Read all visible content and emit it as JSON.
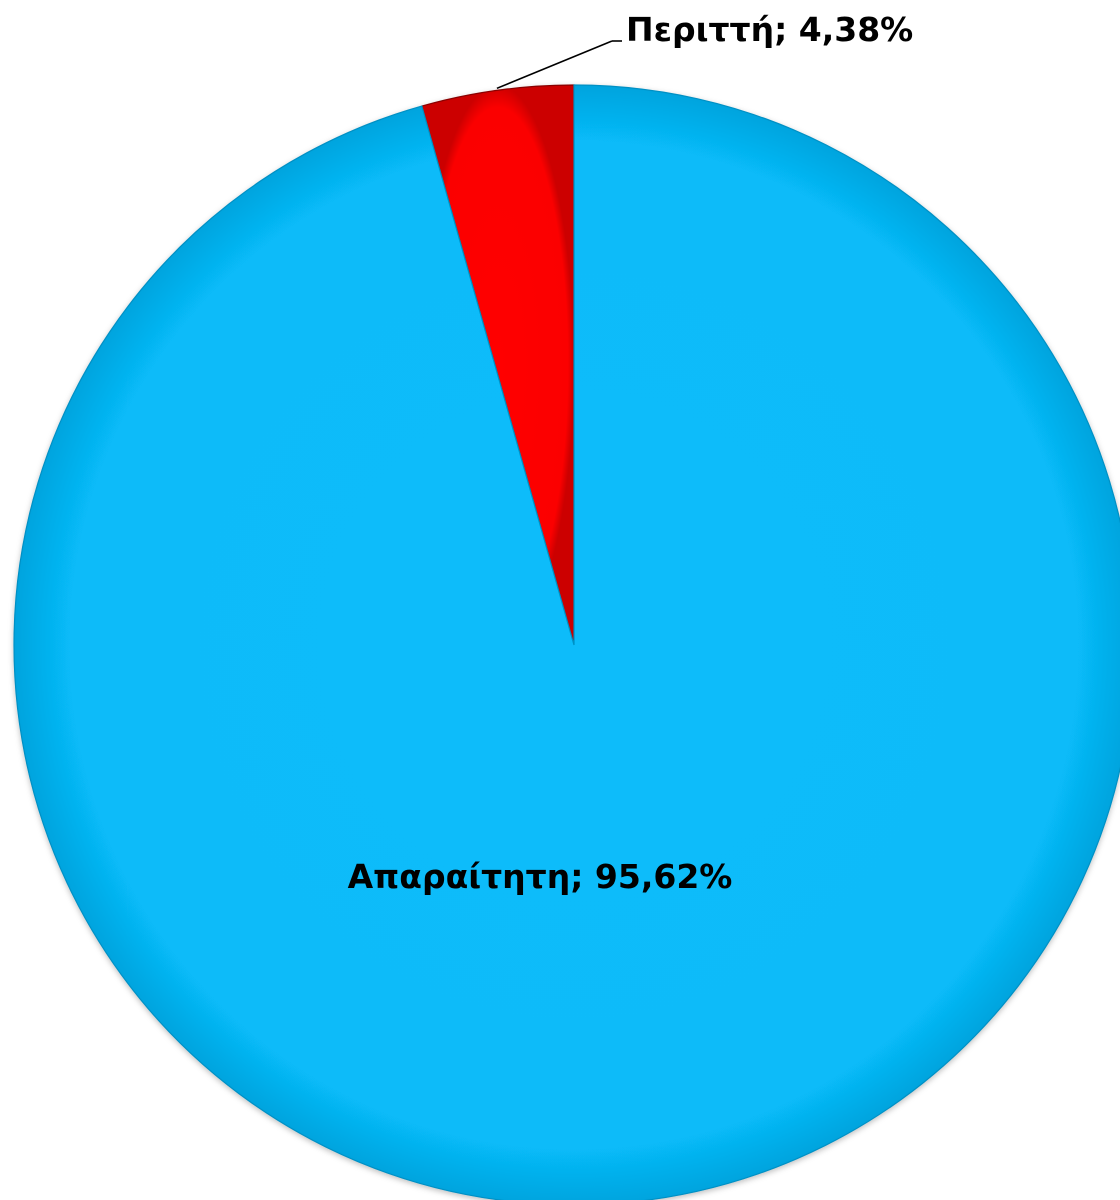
{
  "chart_data": {
    "type": "pie",
    "title": "",
    "slices": [
      {
        "label": "Περιττή",
        "value": 4.38,
        "display": "Περιττή; 4,38%",
        "color": "#ff0000"
      },
      {
        "label": "Απαραίτητη",
        "value": 95.62,
        "display": "Απαραίτητη; 95,62%",
        "color": "#07bbf9"
      }
    ],
    "legend": "none",
    "start_angle": "12 o'clock, counter-clockwise"
  }
}
